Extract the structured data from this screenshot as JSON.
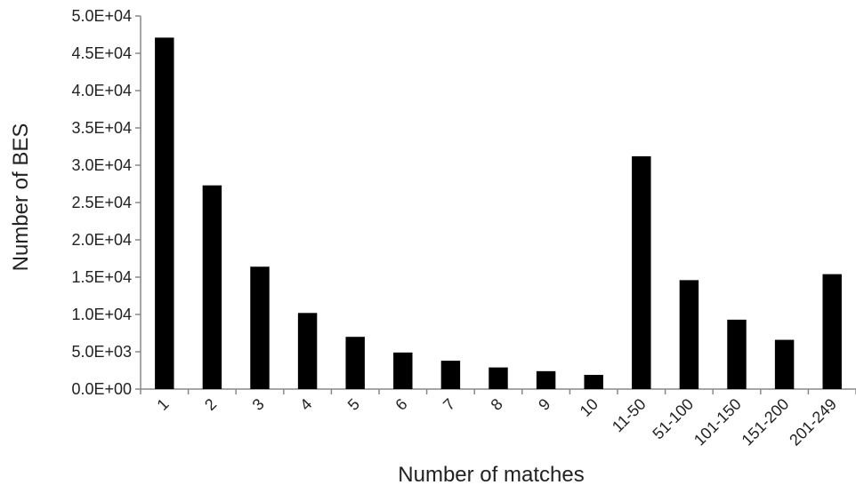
{
  "chart_data": {
    "type": "bar",
    "title": "",
    "xlabel": "Number of matches",
    "ylabel": "Number of BES",
    "categories": [
      "1",
      "2",
      "3",
      "4",
      "5",
      "6",
      "7",
      "8",
      "9",
      "10",
      "11-50",
      "51-100",
      "101-150",
      "151-200",
      "201-249"
    ],
    "values": [
      47100,
      27300,
      16400,
      10200,
      7000,
      4900,
      3800,
      2900,
      2400,
      1900,
      31200,
      14600,
      9300,
      6600,
      15400
    ],
    "ylim": [
      0,
      50000
    ],
    "yticks": [
      0,
      5000,
      10000,
      15000,
      20000,
      25000,
      30000,
      35000,
      40000,
      45000,
      50000
    ],
    "ytick_labels": [
      "0.0E+00",
      "5.0E+03",
      "1.0E+04",
      "1.5E+04",
      "2.0E+04",
      "2.5E+04",
      "3.0E+04",
      "3.5E+04",
      "4.0E+04",
      "4.5E+04",
      "5.0E+04"
    ],
    "grid": false,
    "legend": false,
    "bar_color": "#000000",
    "axis_color": "#888888"
  }
}
